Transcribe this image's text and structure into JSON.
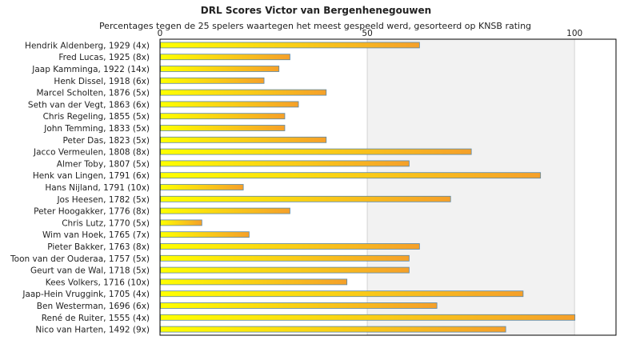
{
  "chart_data": {
    "type": "bar",
    "orientation": "horizontal",
    "title": "DRL Scores Victor van Bergenhenegouwen",
    "subtitle": "Percentages tegen de 25 spelers waartegen het meest gespeeld werd, gesorteerd op KNSB rating",
    "xlim": [
      0,
      110
    ],
    "xticks": [
      0,
      50,
      100
    ],
    "xtick_labels": [
      "0",
      "50",
      "100"
    ],
    "x_axis_position": "top",
    "grid": true,
    "colors": {
      "bar_start": "#ffff00",
      "bar_end": "#f5a02a",
      "bar_border": "#5a88a8",
      "band_even": "#ffffff",
      "band_odd": "#f2f2f2",
      "gridline": "#d4d4d4",
      "frame": "#000000"
    },
    "categories": [
      "Hendrik Aldenberg, 1929 (4x)",
      "Fred Lucas, 1925 (8x)",
      "Jaap Kamminga, 1922 (14x)",
      "Henk Dissel, 1918 (6x)",
      "Marcel Scholten, 1876 (5x)",
      "Seth van der Vegt, 1863 (6x)",
      "Chris Regeling, 1855 (5x)",
      "John Temming, 1833 (5x)",
      "Peter Das, 1823 (5x)",
      "Jacco Vermeulen, 1808 (8x)",
      "Almer Toby, 1807 (5x)",
      "Henk van Lingen, 1791 (6x)",
      "Hans Nijland, 1791 (10x)",
      "Jos Heesen, 1782 (5x)",
      "Peter Hoogakker, 1776 (8x)",
      "Chris Lutz, 1770 (5x)",
      "Wim van Hoek, 1765 (7x)",
      "Pieter Bakker, 1763 (8x)",
      "Toon van der Ouderaa, 1757 (5x)",
      "Geurt van de Wal, 1718 (5x)",
      "Kees Volkers, 1716 (10x)",
      "Jaap-Hein Vruggink, 1705 (4x)",
      "Ben Westerman, 1696 (6x)",
      "René de Ruiter, 1555 (4x)",
      "Nico van Harten, 1492 (9x)"
    ],
    "values": [
      62.5,
      31.25,
      28.6,
      25,
      40,
      33.3,
      30,
      30,
      40,
      75,
      60,
      91.7,
      20,
      70,
      31.25,
      10,
      21.4,
      62.5,
      60,
      60,
      45,
      87.5,
      66.7,
      100,
      83.3
    ]
  }
}
